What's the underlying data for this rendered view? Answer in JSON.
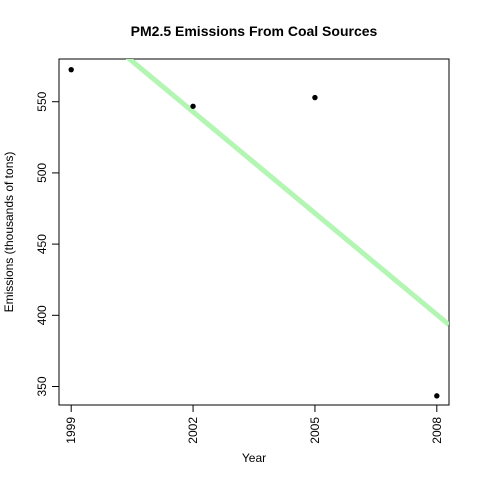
{
  "chart_data": {
    "type": "scatter",
    "title": "PM2.5 Emissions From Coal Sources",
    "xlabel": "Year",
    "ylabel": "Emissions (thousands of tons)",
    "x_ticks": [
      "1999",
      "2002",
      "2005",
      "2008"
    ],
    "y_ticks": [
      "350",
      "400",
      "450",
      "500",
      "550"
    ],
    "xlim": [
      1998.7,
      2008.3
    ],
    "ylim": [
      337,
      580
    ],
    "series": [
      {
        "points": [
          {
            "x": 1999,
            "y": 572.5
          },
          {
            "x": 2002,
            "y": 546.8
          },
          {
            "x": 2005,
            "y": 552.9
          },
          {
            "x": 2008,
            "y": 343.4
          }
        ],
        "color": "#000000"
      }
    ],
    "trend_line": {
      "color": "#b3f5b3",
      "start": {
        "x": 1999.7,
        "y": 597.5
      },
      "end": {
        "x": 2008.3,
        "y": 393.4
      }
    },
    "grid": false,
    "legend": "none"
  }
}
